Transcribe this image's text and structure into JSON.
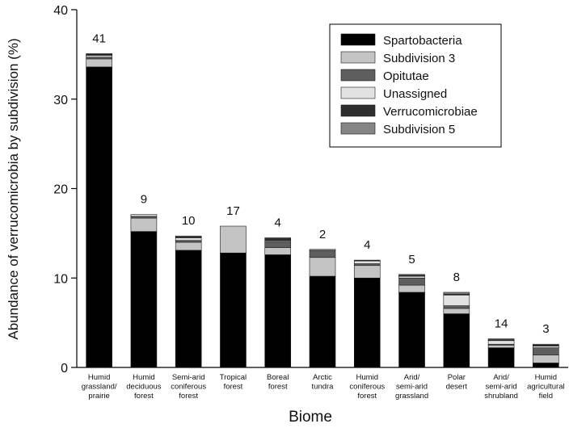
{
  "chart_data": {
    "type": "bar",
    "stacked": true,
    "title": "",
    "xlabel": "Biome",
    "ylabel": "Abundance of verrucomicrobia by subdivision (%)",
    "ylim": [
      0,
      40
    ],
    "yticks": [
      0,
      10,
      20,
      30,
      40
    ],
    "grid": false,
    "legend_position": "top-right",
    "categories": [
      [
        "Humid",
        "grassland/",
        "prairie"
      ],
      [
        "Humid",
        "deciduous",
        "forest"
      ],
      [
        "Semi-arid",
        "coniferous",
        "forest"
      ],
      [
        "Tropical",
        "forest"
      ],
      [
        "Boreal",
        "forest"
      ],
      [
        "Arctic",
        "tundra"
      ],
      [
        "Humid",
        "coniferous",
        "forest"
      ],
      [
        "Arid/",
        "semi-arid",
        "grassland"
      ],
      [
        "Polar",
        "desert"
      ],
      [
        "Arid/",
        "semi-arid",
        "shrubland"
      ],
      [
        "Humid",
        "agricultural",
        "field"
      ]
    ],
    "sample_counts": [
      "41",
      "9",
      "10",
      "17",
      "4",
      "2",
      "4",
      "5",
      "8",
      "14",
      "3"
    ],
    "series": [
      {
        "name": "Spartobacteria",
        "color": "#000000",
        "values": [
          33.6,
          15.2,
          13.1,
          12.8,
          12.6,
          10.2,
          10.0,
          8.4,
          6.0,
          2.2,
          0.5
        ]
      },
      {
        "name": "Subdivision 3",
        "color": "#c4c4c4",
        "values": [
          0.9,
          1.5,
          0.9,
          3.0,
          0.8,
          2.1,
          1.4,
          0.8,
          0.6,
          0.3,
          0.9
        ]
      },
      {
        "name": "Opitutae",
        "color": "#5e5e5e",
        "values": [
          0.2,
          0.2,
          0.2,
          0.0,
          0.7,
          0.8,
          0.2,
          0.8,
          0.3,
          0.1,
          0.8
        ]
      },
      {
        "name": "Unassigned",
        "color": "#e2e2e2",
        "values": [
          0.2,
          0.2,
          0.3,
          0.0,
          0.1,
          0.1,
          0.3,
          0.2,
          1.2,
          0.4,
          0.2
        ]
      },
      {
        "name": "Verrucomicrobiae",
        "color": "#2f2f2f",
        "values": [
          0.1,
          0.0,
          0.1,
          0.0,
          0.2,
          0.0,
          0.1,
          0.1,
          0.1,
          0.1,
          0.1
        ]
      },
      {
        "name": "Subdivision 5",
        "color": "#858585",
        "values": [
          0.1,
          0.0,
          0.1,
          0.0,
          0.1,
          0.0,
          0.0,
          0.1,
          0.2,
          0.1,
          0.1
        ]
      }
    ]
  }
}
